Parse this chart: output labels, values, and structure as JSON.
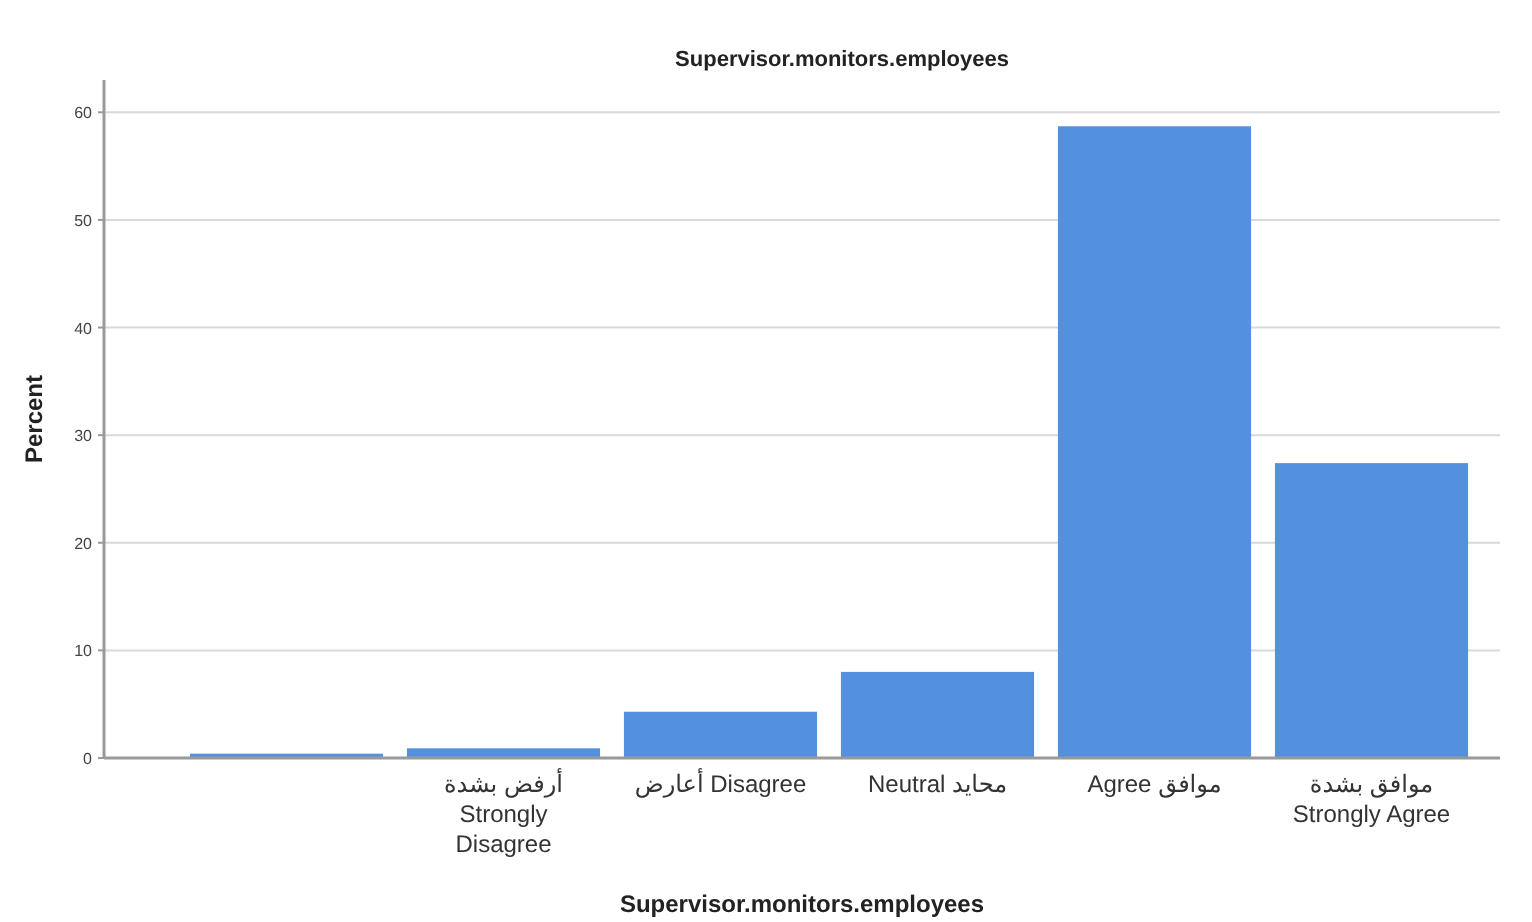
{
  "chart_data": {
    "type": "bar",
    "title": "Supervisor.monitors.employees",
    "xlabel": "Supervisor.monitors.employees",
    "ylabel": "Percent",
    "categories": [
      null,
      "أرفض بشدة Strongly Disagree",
      "أعارض Disagree",
      "Neutral محايد",
      "Agree موافق",
      "موافق بشدة Strongly Agree"
    ],
    "values": [
      0.4,
      0.9,
      4.3,
      8.0,
      58.7,
      27.4
    ],
    "color": "#5391de",
    "ylim": [
      0,
      63
    ],
    "yticks": [
      0,
      10,
      20,
      30,
      40,
      50,
      60
    ],
    "grid": "y"
  }
}
